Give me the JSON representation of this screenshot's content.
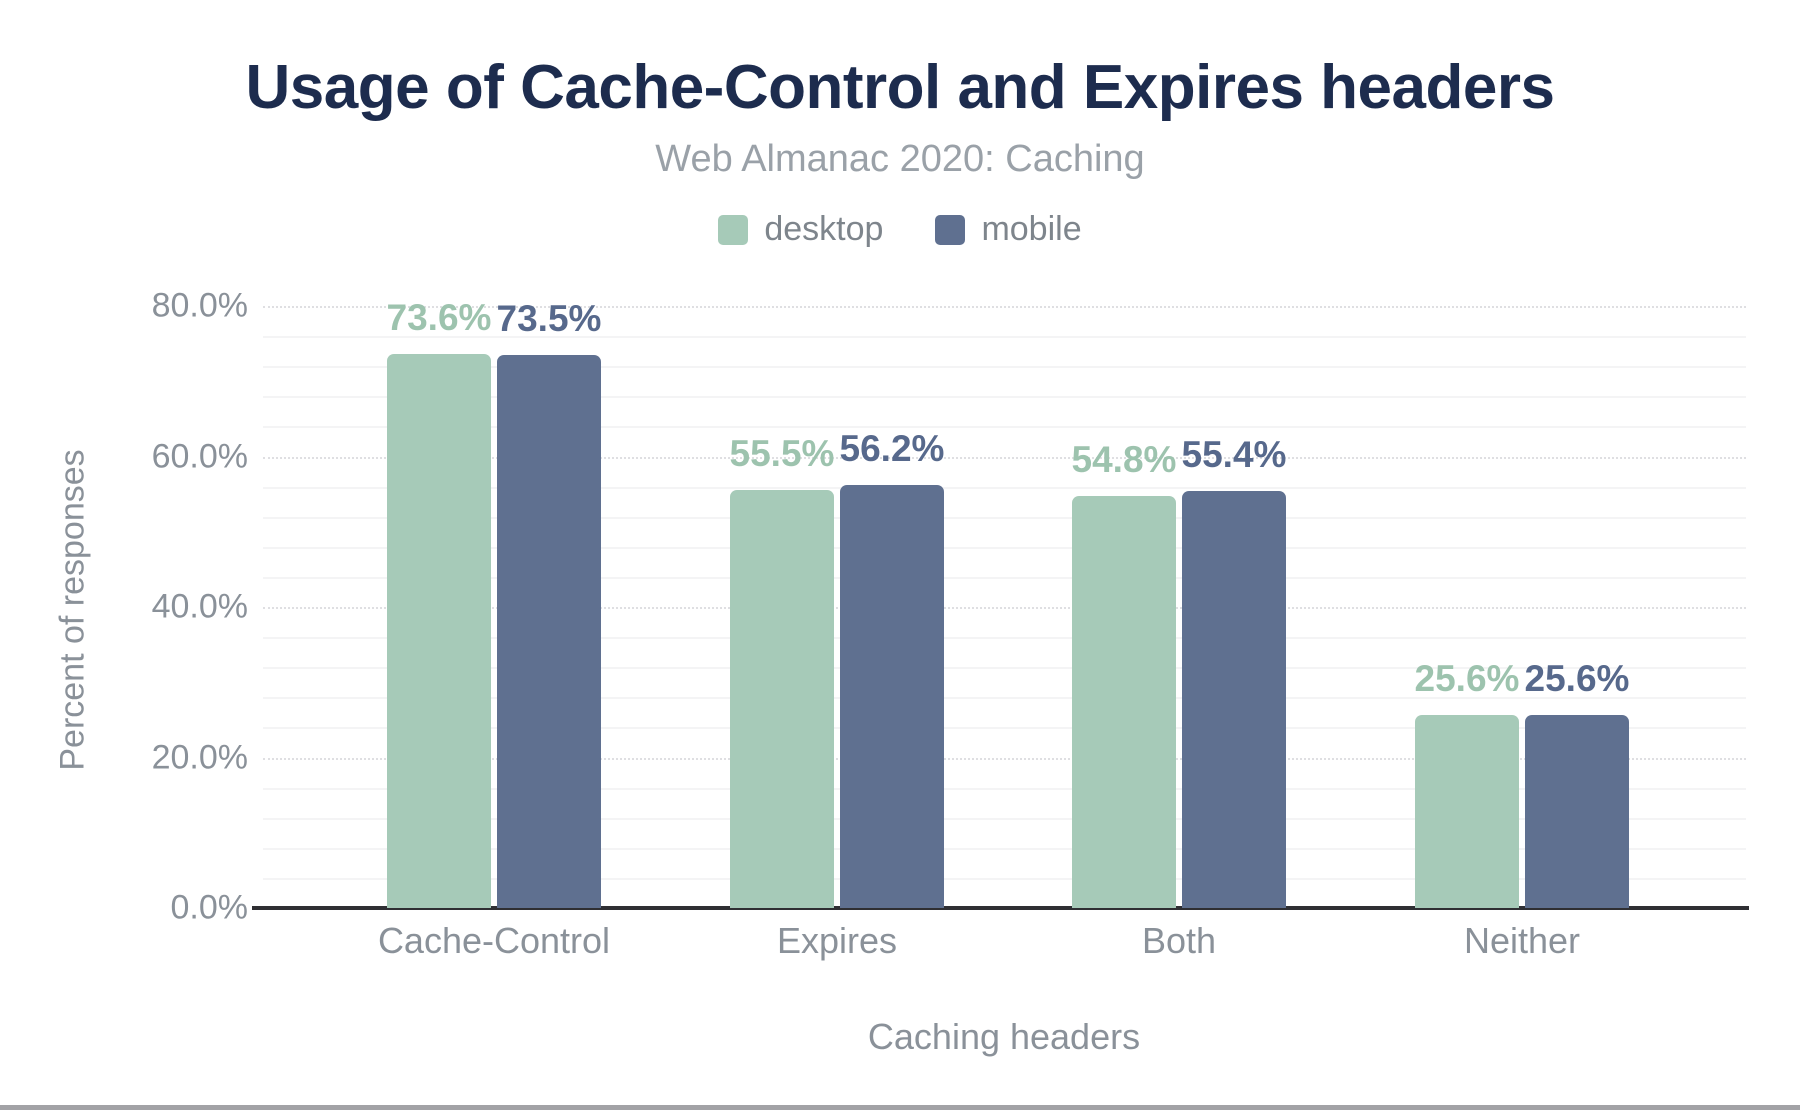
{
  "title": "Usage of Cache-Control and Expires headers",
  "subtitle": "Web Almanac 2020: Caching",
  "legend": {
    "items": [
      {
        "label": "desktop",
        "color": "#a6cab8"
      },
      {
        "label": "mobile",
        "color": "#5f7090"
      }
    ]
  },
  "y_axis": {
    "title": "Percent of responses",
    "ticks": [
      "0.0%",
      "20.0%",
      "40.0%",
      "60.0%",
      "80.0%"
    ]
  },
  "x_axis": {
    "title": "Caching headers"
  },
  "chart_data": {
    "type": "bar",
    "title": "Usage of Cache-Control and Expires headers",
    "subtitle": "Web Almanac 2020: Caching",
    "categories": [
      "Cache-Control",
      "Expires",
      "Both",
      "Neither"
    ],
    "series": [
      {
        "name": "desktop",
        "color": "#a6cab8",
        "label_color": "#9dc3ae",
        "values": [
          73.6,
          55.5,
          54.8,
          25.6
        ],
        "labels": [
          "73.6%",
          "55.5%",
          "54.8%",
          "25.6%"
        ]
      },
      {
        "name": "mobile",
        "color": "#5f7090",
        "label_color": "#57698c",
        "values": [
          73.5,
          56.2,
          55.4,
          25.6
        ],
        "labels": [
          "73.5%",
          "56.2%",
          "55.4%",
          "25.6%"
        ]
      }
    ],
    "xlabel": "Caching headers",
    "ylabel": "Percent of responses",
    "ylim": [
      0,
      80
    ],
    "grid": true,
    "legend_position": "top"
  }
}
